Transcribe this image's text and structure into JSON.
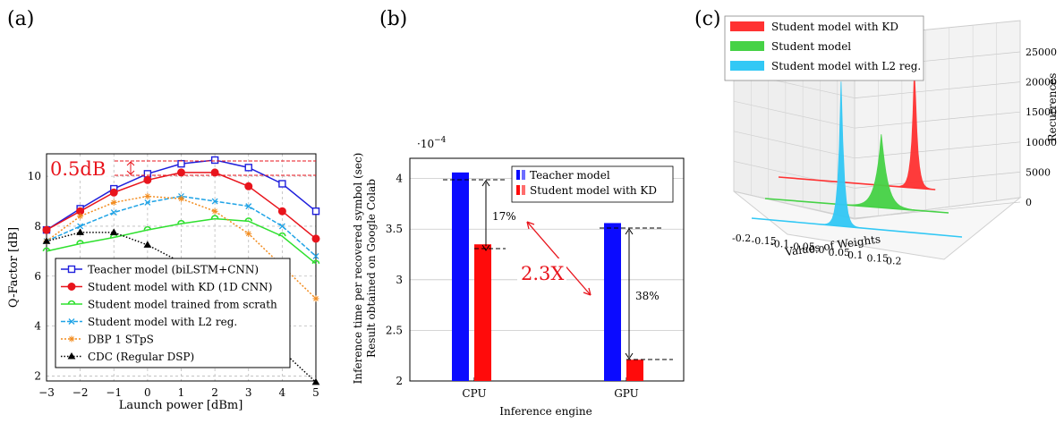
{
  "chart_data": [
    {
      "panel": "(a)",
      "type": "line",
      "xlabel": "Launch power [dBm]",
      "ylabel": "Q-Factor [dB]",
      "xlim": [
        -3,
        5
      ],
      "ylim": [
        1.8,
        10.9
      ],
      "xticks": [
        "−3",
        "−2",
        "−1",
        "0",
        "1",
        "2",
        "3",
        "4",
        "5"
      ],
      "yticks": [
        "2",
        "4",
        "6",
        "8",
        "10"
      ],
      "grid": true,
      "legend_position": "bottom-left",
      "annotation": "0.5dB",
      "x": [
        -3,
        -2,
        -1,
        0,
        1,
        2,
        3,
        4,
        5
      ],
      "series": [
        {
          "name": "Teacher model (biLSTM+CNN)",
          "color": "#1f1fdc",
          "marker": "square",
          "dash": "",
          "values": [
            7.85,
            8.7,
            9.5,
            10.1,
            10.5,
            10.65,
            10.35,
            9.7,
            8.6
          ]
        },
        {
          "name": "Student model with KD (1D CNN)",
          "color": "#e8141c",
          "marker": "circle",
          "dash": "",
          "values": [
            7.85,
            8.6,
            9.35,
            9.85,
            10.15,
            10.15,
            9.6,
            8.6,
            7.5
          ]
        },
        {
          "name": "Student model trained from scrath",
          "color": "#2ee02e",
          "marker": "halfcircle",
          "dash": "",
          "values": [
            7.0,
            7.3,
            7.55,
            7.85,
            8.1,
            8.3,
            8.2,
            7.6,
            6.5
          ]
        },
        {
          "name": "Student model with L2 reg.",
          "color": "#1fa3e6",
          "marker": "x",
          "dash": "5 2",
          "values": [
            7.4,
            8.0,
            8.55,
            8.95,
            9.2,
            9.0,
            8.8,
            8.0,
            6.8
          ]
        },
        {
          "name": "DBP 1 STpS",
          "color": "#f28c1f",
          "marker": "star",
          "dash": "2 2",
          "values": [
            7.4,
            8.4,
            8.95,
            9.2,
            9.1,
            8.6,
            7.7,
            6.4,
            5.1
          ]
        },
        {
          "name": "CDC (Regular DSP)",
          "color": "#000000",
          "marker": "triangle",
          "dash": "1.5 2",
          "values": [
            7.4,
            7.75,
            7.75,
            7.25,
            6.55,
            5.6,
            4.3,
            3.0,
            1.75
          ]
        }
      ]
    },
    {
      "panel": "(b)",
      "type": "bar",
      "xlabel": "Inference engine",
      "ylabel_line1": "Inference time per recovered symbol (sec)",
      "ylabel_line2": "Result obtained on Google Colab",
      "scale_label": "·10",
      "scale_exp": "−4",
      "ylim": [
        2,
        4.2
      ],
      "yticks": [
        "2",
        "2.5",
        "3",
        "3.5",
        "4"
      ],
      "categories": [
        "CPU",
        "GPU"
      ],
      "series": [
        {
          "name": "Teacher model",
          "color": "#0b0bff",
          "values": [
            4.06,
            3.56
          ]
        },
        {
          "name": "Student model with KD",
          "color": "#ff0b0b",
          "values": [
            3.35,
            2.21
          ]
        }
      ],
      "annotations": [
        "17%",
        "38%",
        "2.3X"
      ]
    },
    {
      "panel": "(c)",
      "type": "histogram-3d",
      "xlabel": "Values of Weights",
      "zlabel": "Recurrences",
      "xticks": [
        "-0.2",
        "-0.15",
        "-0.1",
        "-0.05",
        "0.0",
        "0.05",
        "0.1",
        "0.15",
        "0.2"
      ],
      "zticks": [
        "0",
        "5000",
        "10000",
        "15000",
        "20000",
        "25000"
      ],
      "series": [
        {
          "name": "Student model with KD",
          "color": "#ff3232",
          "peak": 22000
        },
        {
          "name": "Student model",
          "color": "#46d246",
          "peak": 12500
        },
        {
          "name": "Student model with L2 reg.",
          "color": "#32c8f5",
          "peak": 25000
        }
      ]
    }
  ]
}
